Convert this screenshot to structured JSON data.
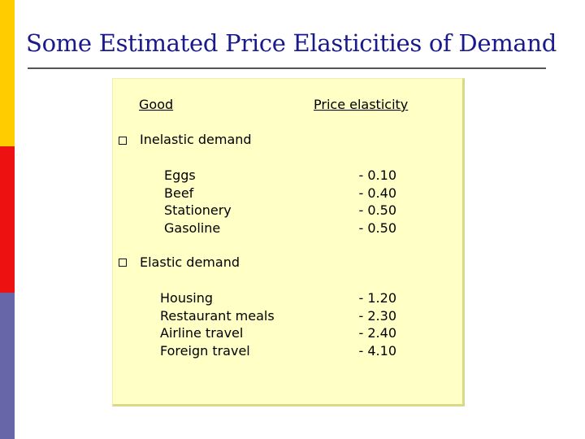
{
  "slide": {
    "title": "Some Estimated Price Elasticities of Demand"
  },
  "table": {
    "header_good": "Good",
    "header_elasticity": "Price elasticity",
    "sections": [
      {
        "heading": "Inelastic demand",
        "rows": [
          {
            "good": "Eggs",
            "elasticity": "- 0.10"
          },
          {
            "good": "Beef",
            "elasticity": "- 0.40"
          },
          {
            "good": "Stationery",
            "elasticity": "- 0.50"
          },
          {
            "good": "Gasoline",
            "elasticity": "- 0.50"
          }
        ]
      },
      {
        "heading": "Elastic demand",
        "rows": [
          {
            "good": "Housing",
            "elasticity": "- 1.20"
          },
          {
            "good": "Restaurant meals",
            "elasticity": "- 2.30"
          },
          {
            "good": "Airline travel",
            "elasticity": "- 2.40"
          },
          {
            "good": "Foreign travel",
            "elasticity": "- 4.10"
          }
        ]
      }
    ]
  },
  "colors": {
    "title": "#1a1a8c",
    "stripe_top": "#ffcc00",
    "stripe_mid": "#ee1111",
    "stripe_bottom": "#6666a8",
    "box_bg": "#ffffc6"
  },
  "icons": {
    "bullet": "hollow-square-bullet-icon"
  }
}
